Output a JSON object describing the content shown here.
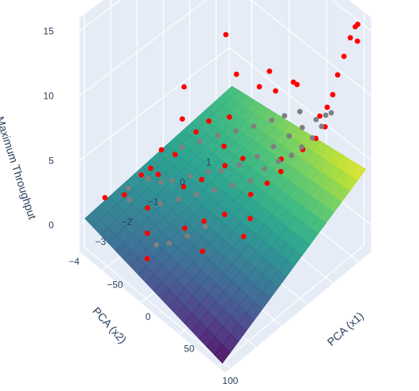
{
  "chart_data": {
    "type": "scatter3d-with-surface",
    "axes": {
      "x": {
        "title": "PCA (x1)",
        "ticks": [
          -50,
          0,
          50,
          100
        ],
        "range": [
          -80,
          110
        ]
      },
      "y": {
        "title": "PCA (x2)",
        "ticks": [
          -4,
          -3,
          -2,
          -1,
          0,
          1
        ],
        "range": [
          -4.2,
          1.5
        ]
      },
      "z": {
        "title": "Maximum Throughput",
        "ticks": [
          0,
          5,
          10,
          15
        ],
        "range": [
          -2,
          16
        ]
      }
    },
    "surface": {
      "colorscale": "viridis",
      "corners_z": {
        "x_neg_y_neg": 1.0,
        "x_neg_y_pos": 2.5,
        "x_pos_y_neg": -1.5,
        "x_pos_y_pos": 4.5
      }
    },
    "series": [
      {
        "color": "#ff0000",
        "points": [
          [
            -70,
            1.2,
            14.5
          ],
          [
            -60,
            -3.8,
            2.5
          ],
          [
            -45,
            -3.5,
            3.0
          ],
          [
            -40,
            -3.0,
            4.0
          ],
          [
            -45,
            -2.5,
            3.5
          ],
          [
            -30,
            -2.0,
            4.5
          ],
          [
            -30,
            -1.2,
            5.0
          ],
          [
            -20,
            -1.0,
            6.0
          ],
          [
            -10,
            -0.5,
            6.0
          ],
          [
            -5,
            0.5,
            7.0
          ],
          [
            -70,
            -0.5,
            5.5
          ],
          [
            -55,
            -1.0,
            4.5
          ],
          [
            -48,
            -2.0,
            4.0
          ],
          [
            -35,
            -2.5,
            3.5
          ],
          [
            -25,
            -3.2,
            2.5
          ],
          [
            -15,
            -3.5,
            1.5
          ],
          [
            -5,
            -3.8,
            0.5
          ],
          [
            -12,
            -2.2,
            3.2
          ],
          [
            -2,
            -1.8,
            3.6
          ],
          [
            8,
            -1.2,
            4.2
          ],
          [
            18,
            -0.8,
            4.6
          ],
          [
            25,
            -2.5,
            2.8
          ],
          [
            35,
            -2.0,
            3.0
          ],
          [
            42,
            -1.2,
            3.6
          ],
          [
            50,
            -0.8,
            4.2
          ],
          [
            58,
            -0.5,
            5.0
          ],
          [
            63,
            0.2,
            5.8
          ],
          [
            70,
            0.5,
            6.5
          ],
          [
            72,
            0.8,
            7.0
          ],
          [
            65,
            0.8,
            7.5
          ],
          [
            68,
            1.0,
            8.0
          ],
          [
            72,
            1.1,
            9.0
          ],
          [
            75,
            1.2,
            10.5
          ],
          [
            80,
            1.3,
            12.0
          ],
          [
            85,
            1.4,
            13.5
          ],
          [
            90,
            1.45,
            14.5
          ],
          [
            95,
            1.4,
            15.0
          ],
          [
            98,
            1.3,
            14.0
          ],
          [
            30,
            0.8,
            8.5
          ],
          [
            45,
            0.5,
            9.5
          ],
          [
            60,
            -2.0,
            2.5
          ],
          [
            40,
            -3.0,
            2.0
          ],
          [
            10,
            -2.8,
            2.0
          ],
          [
            0,
            -1.0,
            5.0
          ],
          [
            -25,
            0.2,
            7.5
          ],
          [
            20,
            0.4,
            8.0
          ],
          [
            5,
            0.6,
            8.5
          ],
          [
            -60,
            0.8,
            8.0
          ],
          [
            55,
            -1.6,
            3.0
          ],
          [
            48,
            -0.2,
            5.0
          ]
        ]
      },
      {
        "color": "#7f7f7f",
        "points": [
          [
            -38,
            -2.8,
            3.5
          ],
          [
            -28,
            -2.6,
            3.4
          ],
          [
            -20,
            -2.4,
            3.6
          ],
          [
            -10,
            -2.0,
            3.8
          ],
          [
            0,
            -1.6,
            4.0
          ],
          [
            10,
            -1.4,
            4.2
          ],
          [
            20,
            -1.0,
            4.5
          ],
          [
            30,
            -0.6,
            5.0
          ],
          [
            38,
            -0.2,
            5.5
          ],
          [
            45,
            0.2,
            6.0
          ],
          [
            52,
            0.5,
            6.5
          ],
          [
            60,
            0.8,
            7.0
          ],
          [
            66,
            1.0,
            7.3
          ],
          [
            70,
            1.1,
            7.5
          ],
          [
            -15,
            -3.0,
            3.0
          ],
          [
            -5,
            -2.6,
            3.2
          ],
          [
            5,
            -2.2,
            3.4
          ],
          [
            15,
            -1.8,
            3.6
          ],
          [
            25,
            -1.4,
            3.8
          ],
          [
            35,
            -1.0,
            4.0
          ],
          [
            40,
            -0.6,
            4.5
          ],
          [
            48,
            -0.3,
            5.0
          ],
          [
            55,
            0.0,
            5.3
          ],
          [
            58,
            0.3,
            5.6
          ],
          [
            -35,
            -1.6,
            4.2
          ],
          [
            -25,
            -1.2,
            4.5
          ],
          [
            -15,
            -0.8,
            4.8
          ],
          [
            -5,
            -0.4,
            5.0
          ],
          [
            5,
            0.0,
            5.2
          ],
          [
            15,
            0.4,
            5.5
          ],
          [
            25,
            0.6,
            6.0
          ],
          [
            35,
            0.9,
            6.3
          ],
          [
            -50,
            -3.2,
            2.8
          ],
          [
            -42,
            -3.4,
            2.6
          ],
          [
            30,
            -2.6,
            2.8
          ],
          [
            20,
            -3.0,
            2.2
          ],
          [
            10,
            -3.4,
            1.8
          ],
          [
            0,
            -3.6,
            1.5
          ],
          [
            62,
            0.6,
            6.0
          ],
          [
            64,
            0.9,
            6.5
          ]
        ]
      }
    ]
  }
}
